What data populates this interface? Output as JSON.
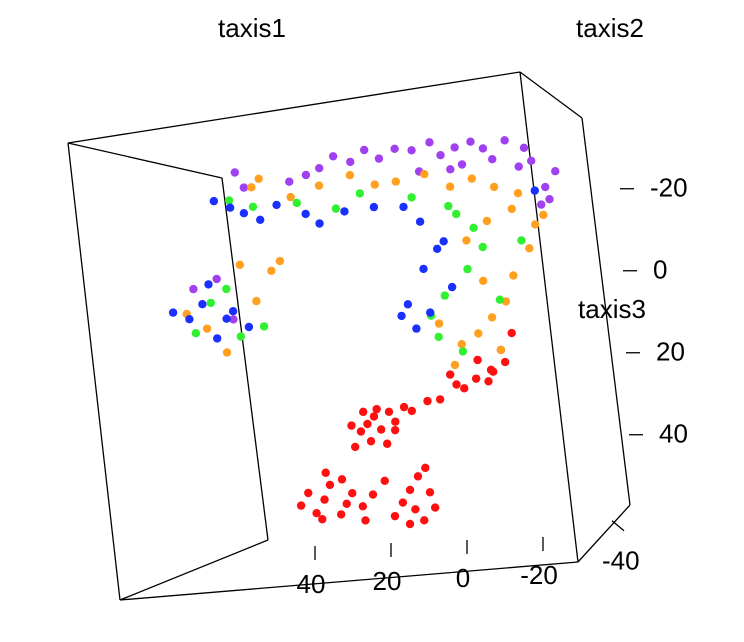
{
  "chart_data": {
    "type": "scatter3d",
    "xlabel": "taxis1",
    "ylabel": "taxis2",
    "zlabel": "taxis3",
    "xticks": [
      40,
      20,
      0,
      -20
    ],
    "yticks": [
      -40
    ],
    "zticks": [
      -20,
      0,
      20,
      40
    ],
    "series": [
      {
        "color": "#ff1010",
        "x": [
          32,
          34,
          30,
          28,
          36,
          33,
          26,
          29,
          38,
          31,
          24,
          35,
          27,
          22,
          37,
          50,
          46,
          44,
          40,
          42,
          48,
          38,
          36,
          52,
          45,
          33,
          30,
          47,
          41,
          35,
          22,
          20,
          25,
          18,
          24,
          21,
          27,
          17,
          19,
          23,
          10,
          5,
          0,
          -3,
          2,
          8,
          14,
          18,
          -2,
          4,
          -5,
          1,
          12
        ],
        "y": [
          0,
          1,
          -1,
          0,
          2,
          0,
          -2,
          1,
          0,
          -1,
          0,
          1,
          2,
          0,
          -1,
          0,
          1,
          -1,
          0,
          2,
          0,
          -2,
          1,
          0,
          -1,
          0,
          1,
          2,
          0,
          -1,
          0,
          1,
          -1,
          0,
          2,
          0,
          -2,
          1,
          0,
          -1,
          0,
          1,
          -1,
          0,
          2,
          0,
          -2,
          1,
          0,
          -1,
          0,
          1,
          2
        ],
        "z": [
          37,
          39,
          40,
          36,
          41,
          43,
          38,
          44,
          39,
          35,
          35,
          36,
          41,
          36,
          44,
          55,
          57,
          53,
          58,
          61,
          60,
          55,
          59,
          58,
          50,
          56,
          53,
          62,
          52,
          62,
          60,
          63,
          58,
          56,
          64,
          52,
          61,
          60,
          50,
          55,
          30,
          29,
          27,
          25,
          30,
          31,
          33,
          34,
          22,
          24,
          18,
          27,
          28
        ]
      },
      {
        "color": "#a040f0",
        "x": [
          -18,
          -15,
          -12,
          -10,
          -8,
          -5,
          -2,
          1,
          4,
          8,
          12,
          15,
          20,
          24,
          28,
          32,
          36,
          40,
          44,
          48,
          -14,
          6,
          18,
          52,
          66,
          64,
          -16,
          10,
          72,
          78,
          68
        ],
        "y": [
          0,
          1,
          -1,
          0,
          2,
          0,
          -2,
          1,
          0,
          -1,
          0,
          1,
          2,
          0,
          -1,
          0,
          1,
          -1,
          0,
          2,
          0,
          -2,
          1,
          0,
          -1,
          0,
          1,
          2,
          0,
          -1,
          0
        ],
        "z": [
          -21,
          -17,
          -24,
          -27,
          -22,
          -29,
          -25,
          -27,
          -29,
          -28,
          -26,
          -29,
          -27,
          -28,
          -26,
          -28,
          -25,
          -27,
          -24,
          -22,
          -13,
          -24,
          -22,
          -21,
          -24,
          -20,
          -14,
          -22,
          2,
          4,
          12
        ]
      },
      {
        "color": "#ffa020",
        "x": [
          60,
          52,
          44,
          36,
          30,
          24,
          16,
          10,
          4,
          -2,
          -8,
          -12,
          -10,
          -6,
          -4,
          0,
          4,
          8,
          2,
          -14,
          6,
          0,
          -6,
          14,
          10,
          -2,
          66,
          58,
          75,
          80,
          70,
          62,
          55,
          62
        ],
        "y": [
          0,
          1,
          -1,
          0,
          2,
          0,
          -2,
          1,
          0,
          -1,
          0,
          1,
          2,
          0,
          -1,
          0,
          1,
          -1,
          0,
          2,
          0,
          -2,
          1,
          0,
          -1,
          0,
          1,
          2,
          0,
          -1,
          0,
          1,
          -1,
          0
        ],
        "z": [
          -22,
          -17,
          -20,
          -22,
          -19,
          -20,
          -22,
          -18,
          -20,
          -18,
          -16,
          -8,
          -2,
          4,
          10,
          14,
          18,
          20,
          5,
          -10,
          -5,
          -10,
          -12,
          15,
          25,
          22,
          -1,
          1,
          14,
          10,
          20,
          8,
          -2,
          -20
        ]
      },
      {
        "color": "#30f030",
        "x": [
          68,
          62,
          50,
          40,
          34,
          20,
          8,
          2,
          6,
          12,
          16,
          -2,
          -8,
          4,
          14,
          8,
          74,
          66,
          78,
          70,
          60,
          10
        ],
        "y": [
          0,
          1,
          -1,
          0,
          2,
          0,
          -2,
          1,
          0,
          -1,
          0,
          1,
          2,
          0,
          -1,
          0,
          1,
          -1,
          0,
          2,
          0,
          -2
        ],
        "z": [
          -17,
          -15,
          -16,
          -14,
          -17,
          -16,
          -12,
          -3,
          2,
          8,
          13,
          10,
          -4,
          -8,
          18,
          22,
          8,
          16,
          15,
          5,
          14,
          -14
        ]
      },
      {
        "color": "#1a30ff",
        "x": [
          72,
          68,
          64,
          60,
          56,
          48,
          44,
          38,
          30,
          22,
          18,
          14,
          18,
          22,
          16,
          20,
          24,
          10,
          12,
          80,
          76,
          72,
          84,
          68,
          74,
          64,
          70,
          -12
        ],
        "y": [
          0,
          1,
          -1,
          0,
          2,
          0,
          -2,
          1,
          0,
          -1,
          0,
          1,
          2,
          0,
          -1,
          0,
          1,
          -1,
          0,
          2,
          0,
          -2,
          1,
          0,
          -1,
          0,
          1,
          2
        ],
        "z": [
          -17,
          -15,
          -14,
          -12,
          -15,
          -13,
          -11,
          -13,
          -14,
          -14,
          -10,
          -3,
          2,
          10,
          12,
          16,
          13,
          6,
          -5,
          12,
          8,
          16,
          10,
          10,
          3,
          14,
          12,
          -16
        ]
      }
    ]
  }
}
